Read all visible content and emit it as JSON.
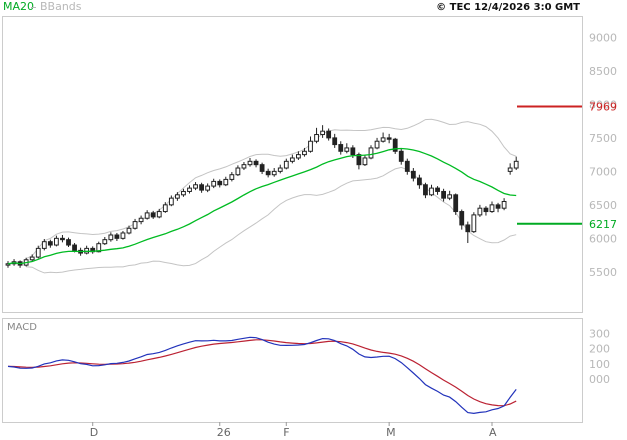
{
  "header": {
    "ma20_label": "MA20",
    "bbands_label": "BBands",
    "copyright": "© TEC 12/4/2026 3:0 GMT"
  },
  "chart_data": {
    "type": "candlestick",
    "title": "",
    "price_ticks": [
      9000,
      8500,
      8000,
      7500,
      7000,
      6500,
      6000,
      5500
    ],
    "ylim": [
      4900,
      9320
    ],
    "x_labels": [
      {
        "label": "D",
        "index": 14
      },
      {
        "label": "26",
        "index": 35
      },
      {
        "label": "F",
        "index": 46
      },
      {
        "label": "M",
        "index": 63
      },
      {
        "label": "A",
        "index": 80
      }
    ],
    "overlays": [
      {
        "name": "MA20",
        "type": "sma",
        "period": 20,
        "color": "#00bb22"
      },
      {
        "name": "BBands",
        "type": "bollinger",
        "period": 20,
        "stddev": 2,
        "color": "#c4c4c4"
      }
    ],
    "levels": [
      {
        "name": "resistance",
        "value": 7969,
        "color": "#cc2222"
      },
      {
        "name": "support",
        "value": 6217,
        "color": "#00aa22"
      }
    ],
    "candles_ohlc": [
      [
        5600,
        5660,
        5560,
        5620
      ],
      [
        5620,
        5690,
        5590,
        5650
      ],
      [
        5650,
        5670,
        5560,
        5600
      ],
      [
        5600,
        5710,
        5580,
        5680
      ],
      [
        5680,
        5760,
        5650,
        5720
      ],
      [
        5720,
        5890,
        5700,
        5850
      ],
      [
        5850,
        5990,
        5820,
        5950
      ],
      [
        5950,
        5980,
        5860,
        5900
      ],
      [
        5900,
        6040,
        5880,
        6000
      ],
      [
        6000,
        6050,
        5940,
        5980
      ],
      [
        5980,
        6010,
        5870,
        5900
      ],
      [
        5900,
        5930,
        5790,
        5820
      ],
      [
        5820,
        5860,
        5740,
        5780
      ],
      [
        5780,
        5890,
        5760,
        5850
      ],
      [
        5850,
        5880,
        5770,
        5800
      ],
      [
        5800,
        5950,
        5790,
        5920
      ],
      [
        5920,
        6020,
        5900,
        5980
      ],
      [
        5980,
        6090,
        5950,
        6050
      ],
      [
        6050,
        6080,
        5960,
        6000
      ],
      [
        6000,
        6110,
        5980,
        6080
      ],
      [
        6080,
        6190,
        6060,
        6150
      ],
      [
        6150,
        6290,
        6130,
        6250
      ],
      [
        6250,
        6340,
        6210,
        6300
      ],
      [
        6300,
        6420,
        6280,
        6380
      ],
      [
        6380,
        6410,
        6290,
        6320
      ],
      [
        6320,
        6440,
        6300,
        6400
      ],
      [
        6400,
        6540,
        6380,
        6500
      ],
      [
        6500,
        6640,
        6480,
        6600
      ],
      [
        6600,
        6690,
        6560,
        6650
      ],
      [
        6650,
        6740,
        6620,
        6700
      ],
      [
        6700,
        6790,
        6670,
        6750
      ],
      [
        6750,
        6840,
        6720,
        6800
      ],
      [
        6800,
        6830,
        6680,
        6720
      ],
      [
        6720,
        6820,
        6690,
        6780
      ],
      [
        6780,
        6890,
        6750,
        6850
      ],
      [
        6850,
        6880,
        6760,
        6800
      ],
      [
        6800,
        6920,
        6780,
        6880
      ],
      [
        6880,
        6990,
        6850,
        6950
      ],
      [
        6950,
        7090,
        6930,
        7050
      ],
      [
        7050,
        7140,
        7020,
        7100
      ],
      [
        7100,
        7200,
        7070,
        7150
      ],
      [
        7150,
        7180,
        7060,
        7100
      ],
      [
        7100,
        7130,
        6960,
        7000
      ],
      [
        7000,
        7040,
        6910,
        6950
      ],
      [
        6950,
        7050,
        6920,
        7000
      ],
      [
        7000,
        7100,
        6970,
        7050
      ],
      [
        7050,
        7190,
        7030,
        7150
      ],
      [
        7150,
        7250,
        7120,
        7200
      ],
      [
        7200,
        7300,
        7170,
        7250
      ],
      [
        7250,
        7350,
        7220,
        7300
      ],
      [
        7300,
        7520,
        7280,
        7450
      ],
      [
        7450,
        7650,
        7420,
        7550
      ],
      [
        7550,
        7690,
        7500,
        7600
      ],
      [
        7600,
        7640,
        7460,
        7500
      ],
      [
        7500,
        7560,
        7350,
        7400
      ],
      [
        7400,
        7450,
        7250,
        7300
      ],
      [
        7300,
        7420,
        7270,
        7350
      ],
      [
        7350,
        7390,
        7200,
        7250
      ],
      [
        7250,
        7280,
        7030,
        7100
      ],
      [
        7100,
        7250,
        7080,
        7200
      ],
      [
        7200,
        7390,
        7180,
        7350
      ],
      [
        7350,
        7500,
        7330,
        7450
      ],
      [
        7450,
        7580,
        7430,
        7500
      ],
      [
        7500,
        7560,
        7420,
        7480
      ],
      [
        7480,
        7500,
        7260,
        7300
      ],
      [
        7300,
        7340,
        7100,
        7150
      ],
      [
        7150,
        7190,
        6950,
        7000
      ],
      [
        7000,
        7050,
        6850,
        6900
      ],
      [
        6900,
        6950,
        6740,
        6800
      ],
      [
        6800,
        6830,
        6600,
        6650
      ],
      [
        6650,
        6800,
        6630,
        6750
      ],
      [
        6750,
        6780,
        6650,
        6700
      ],
      [
        6700,
        6740,
        6550,
        6600
      ],
      [
        6600,
        6710,
        6570,
        6650
      ],
      [
        6650,
        6670,
        6350,
        6400
      ],
      [
        6400,
        6430,
        6130,
        6200
      ],
      [
        6200,
        6250,
        5930,
        6100
      ],
      [
        6100,
        6390,
        6080,
        6350
      ],
      [
        6350,
        6500,
        6320,
        6450
      ],
      [
        6450,
        6480,
        6340,
        6400
      ],
      [
        6400,
        6550,
        6380,
        6500
      ],
      [
        6500,
        6530,
        6390,
        6450
      ],
      [
        6450,
        6600,
        6420,
        6550
      ],
      [
        7000,
        7120,
        6950,
        7050
      ],
      [
        7050,
        7220,
        7020,
        7150
      ]
    ],
    "macd": {
      "label": "MACD",
      "params": [
        12,
        26,
        9
      ],
      "ticks": [
        "300",
        "200",
        "100",
        "000"
      ],
      "tick_values": [
        300,
        200,
        100,
        0
      ],
      "ylim": [
        -280,
        400
      ],
      "line_color": "#2233bb",
      "signal_color": "#bb2233"
    }
  }
}
